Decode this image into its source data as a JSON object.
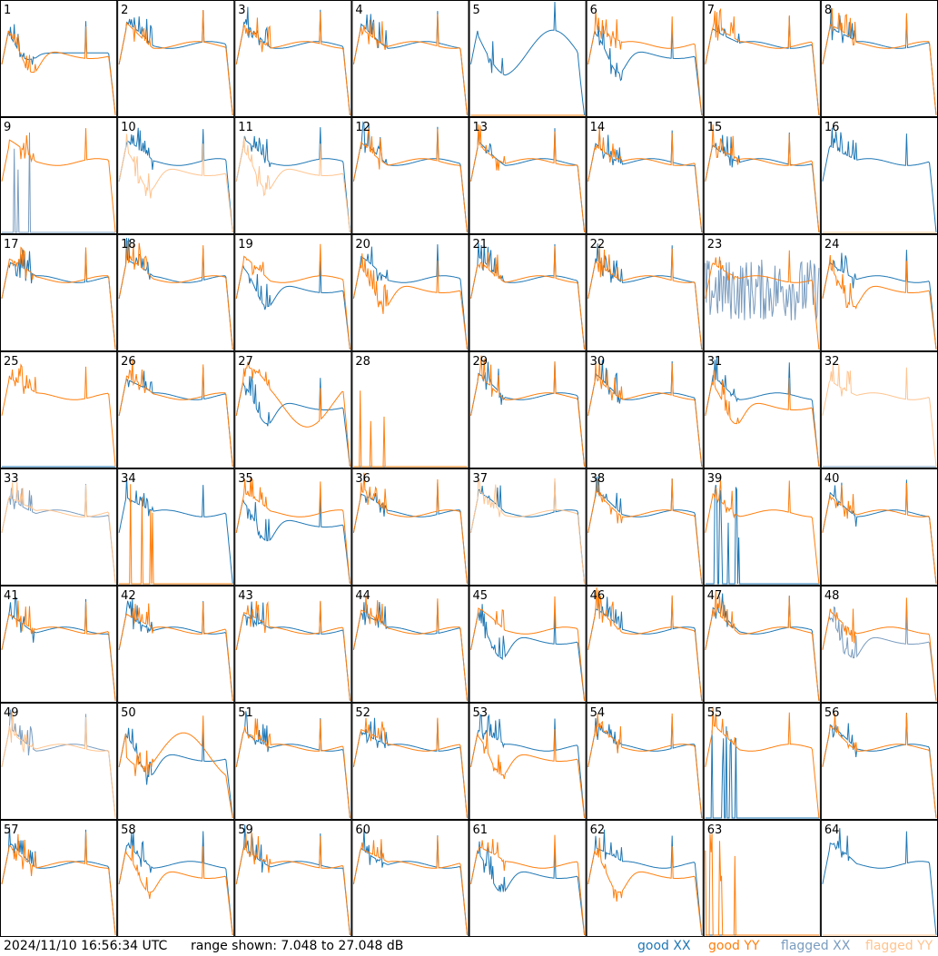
{
  "chart_data": {
    "type": "line",
    "layout": "grid-8x8",
    "panels": [
      {
        "id": "1",
        "xx": "good",
        "yy": "good",
        "xx_shape": "highdip",
        "yy_shape": "lowdip"
      },
      {
        "id": "2",
        "xx": "good",
        "yy": "good",
        "xx_shape": "normal",
        "yy_shape": "normal"
      },
      {
        "id": "3",
        "xx": "good",
        "yy": "good",
        "xx_shape": "normal",
        "yy_shape": "normal"
      },
      {
        "id": "4",
        "xx": "good",
        "yy": "good",
        "xx_shape": "normal",
        "yy_shape": "normal"
      },
      {
        "id": "5",
        "xx": "good",
        "yy": "good",
        "xx_shape": "wave",
        "yy_shape": "flat0"
      },
      {
        "id": "6",
        "xx": "good",
        "yy": "good",
        "xx_shape": "lowdip",
        "yy_shape": "normal"
      },
      {
        "id": "7",
        "xx": "good",
        "yy": "good",
        "xx_shape": "normal",
        "yy_shape": "normal"
      },
      {
        "id": "8",
        "xx": "good",
        "yy": "good",
        "xx_shape": "normal",
        "yy_shape": "normal"
      },
      {
        "id": "9",
        "xx": "flagged",
        "yy": "good",
        "xx_shape": "spikes",
        "yy_shape": "normal"
      },
      {
        "id": "10",
        "xx": "good",
        "yy": "flagged",
        "xx_shape": "normal",
        "yy_shape": "lowdip"
      },
      {
        "id": "11",
        "xx": "good",
        "yy": "flagged",
        "xx_shape": "normal",
        "yy_shape": "lowdip"
      },
      {
        "id": "12",
        "xx": "good",
        "yy": "good",
        "xx_shape": "normal",
        "yy_shape": "normal"
      },
      {
        "id": "13",
        "xx": "good",
        "yy": "good",
        "xx_shape": "normal",
        "yy_shape": "normal"
      },
      {
        "id": "14",
        "xx": "good",
        "yy": "good",
        "xx_shape": "normal",
        "yy_shape": "normal"
      },
      {
        "id": "15",
        "xx": "good",
        "yy": "good",
        "xx_shape": "normal",
        "yy_shape": "normal"
      },
      {
        "id": "16",
        "xx": "good",
        "yy": "flagged",
        "xx_shape": "normal",
        "yy_shape": "flat0"
      },
      {
        "id": "17",
        "xx": "good",
        "yy": "good",
        "xx_shape": "normal",
        "yy_shape": "normal"
      },
      {
        "id": "18",
        "xx": "good",
        "yy": "good",
        "xx_shape": "normal",
        "yy_shape": "normal"
      },
      {
        "id": "19",
        "xx": "good",
        "yy": "good",
        "xx_shape": "lowdip",
        "yy_shape": "normal"
      },
      {
        "id": "20",
        "xx": "good",
        "yy": "good",
        "xx_shape": "normal",
        "yy_shape": "lowdip"
      },
      {
        "id": "21",
        "xx": "good",
        "yy": "good",
        "xx_shape": "normal",
        "yy_shape": "normal"
      },
      {
        "id": "22",
        "xx": "good",
        "yy": "good",
        "xx_shape": "normal",
        "yy_shape": "normal"
      },
      {
        "id": "23",
        "xx": "flagged",
        "yy": "good",
        "xx_shape": "noisy",
        "yy_shape": "normal"
      },
      {
        "id": "24",
        "xx": "good",
        "yy": "good",
        "xx_shape": "normal",
        "yy_shape": "lowdip"
      },
      {
        "id": "25",
        "xx": "good",
        "yy": "good",
        "xx_shape": "flat0",
        "yy_shape": "normal"
      },
      {
        "id": "26",
        "xx": "good",
        "yy": "good",
        "xx_shape": "normal",
        "yy_shape": "normal"
      },
      {
        "id": "27",
        "xx": "good",
        "yy": "good",
        "xx_shape": "lowdip",
        "yy_shape": "wave"
      },
      {
        "id": "28",
        "xx": "good",
        "yy": "good",
        "xx_shape": "flat0",
        "yy_shape": "spikes"
      },
      {
        "id": "29",
        "xx": "good",
        "yy": "good",
        "xx_shape": "normal",
        "yy_shape": "normal"
      },
      {
        "id": "30",
        "xx": "good",
        "yy": "good",
        "xx_shape": "normal",
        "yy_shape": "normal"
      },
      {
        "id": "31",
        "xx": "good",
        "yy": "good",
        "xx_shape": "normal",
        "yy_shape": "lowdip"
      },
      {
        "id": "32",
        "xx": "flagged",
        "yy": "flagged",
        "xx_shape": "flat0",
        "yy_shape": "normal"
      },
      {
        "id": "33",
        "xx": "flagged",
        "yy": "flagged",
        "xx_shape": "normal",
        "yy_shape": "normal"
      },
      {
        "id": "34",
        "xx": "good",
        "yy": "good",
        "xx_shape": "normal",
        "yy_shape": "spikes"
      },
      {
        "id": "35",
        "xx": "good",
        "yy": "good",
        "xx_shape": "lowdip",
        "yy_shape": "normal"
      },
      {
        "id": "36",
        "xx": "good",
        "yy": "good",
        "xx_shape": "normal",
        "yy_shape": "normal"
      },
      {
        "id": "37",
        "xx": "good",
        "yy": "flagged",
        "xx_shape": "normal",
        "yy_shape": "normal"
      },
      {
        "id": "38",
        "xx": "good",
        "yy": "good",
        "xx_shape": "normal",
        "yy_shape": "normal"
      },
      {
        "id": "39",
        "xx": "good",
        "yy": "good",
        "xx_shape": "spikes",
        "yy_shape": "normal"
      },
      {
        "id": "40",
        "xx": "good",
        "yy": "good",
        "xx_shape": "normal",
        "yy_shape": "normal"
      },
      {
        "id": "41",
        "xx": "good",
        "yy": "good",
        "xx_shape": "normal",
        "yy_shape": "normal"
      },
      {
        "id": "42",
        "xx": "good",
        "yy": "good",
        "xx_shape": "normal",
        "yy_shape": "normal"
      },
      {
        "id": "43",
        "xx": "good",
        "yy": "good",
        "xx_shape": "normal",
        "yy_shape": "normal"
      },
      {
        "id": "44",
        "xx": "good",
        "yy": "good",
        "xx_shape": "normal",
        "yy_shape": "normal"
      },
      {
        "id": "45",
        "xx": "good",
        "yy": "good",
        "xx_shape": "lowdip",
        "yy_shape": "normal"
      },
      {
        "id": "46",
        "xx": "good",
        "yy": "good",
        "xx_shape": "normal",
        "yy_shape": "normal"
      },
      {
        "id": "47",
        "xx": "good",
        "yy": "good",
        "xx_shape": "normal",
        "yy_shape": "normal"
      },
      {
        "id": "48",
        "xx": "flagged",
        "yy": "good",
        "xx_shape": "lowdip",
        "yy_shape": "normal"
      },
      {
        "id": "49",
        "xx": "flagged",
        "yy": "flagged",
        "xx_shape": "normal",
        "yy_shape": "normal"
      },
      {
        "id": "50",
        "xx": "good",
        "yy": "good",
        "xx_shape": "lowdip",
        "yy_shape": "wave"
      },
      {
        "id": "51",
        "xx": "good",
        "yy": "good",
        "xx_shape": "normal",
        "yy_shape": "normal"
      },
      {
        "id": "52",
        "xx": "good",
        "yy": "good",
        "xx_shape": "normal",
        "yy_shape": "normal"
      },
      {
        "id": "53",
        "xx": "good",
        "yy": "good",
        "xx_shape": "normal",
        "yy_shape": "lowdip"
      },
      {
        "id": "54",
        "xx": "good",
        "yy": "good",
        "xx_shape": "normal",
        "yy_shape": "normal"
      },
      {
        "id": "55",
        "xx": "good",
        "yy": "good",
        "xx_shape": "spikes",
        "yy_shape": "normal"
      },
      {
        "id": "56",
        "xx": "good",
        "yy": "good",
        "xx_shape": "normal",
        "yy_shape": "normal"
      },
      {
        "id": "57",
        "xx": "good",
        "yy": "good",
        "xx_shape": "normal",
        "yy_shape": "normal"
      },
      {
        "id": "58",
        "xx": "good",
        "yy": "good",
        "xx_shape": "normal",
        "yy_shape": "lowdip"
      },
      {
        "id": "59",
        "xx": "good",
        "yy": "good",
        "xx_shape": "normal",
        "yy_shape": "normal"
      },
      {
        "id": "60",
        "xx": "good",
        "yy": "good",
        "xx_shape": "normal",
        "yy_shape": "normal"
      },
      {
        "id": "61",
        "xx": "good",
        "yy": "good",
        "xx_shape": "lowdip",
        "yy_shape": "normal"
      },
      {
        "id": "62",
        "xx": "good",
        "yy": "good",
        "xx_shape": "normal",
        "yy_shape": "lowdip"
      },
      {
        "id": "63",
        "xx": "good",
        "yy": "good",
        "xx_shape": "flat0",
        "yy_shape": "spikes"
      },
      {
        "id": "64",
        "xx": "good",
        "yy": "flagged",
        "xx_shape": "normal",
        "yy_shape": "flat0"
      }
    ],
    "y_range_db": [
      7.048,
      27.048
    ],
    "colors": {
      "good_xx": "#1f77b4",
      "good_yy": "#ff7f0e",
      "flagged_xx": "#7a9cbf",
      "flagged_yy": "#ffc48f"
    }
  },
  "footer": {
    "timestamp": "2024/11/10 16:56:34 UTC",
    "range_text": "range shown: 7.048 to 27.048 dB"
  },
  "legend": {
    "good_xx": "good XX",
    "good_yy": "good YY",
    "flagged_xx": "flagged XX",
    "flagged_yy": "flagged YY"
  }
}
